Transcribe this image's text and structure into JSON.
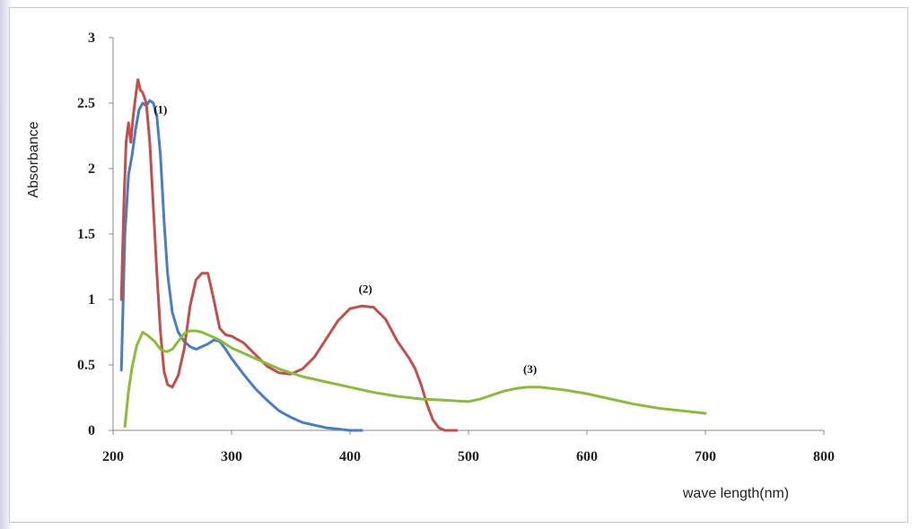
{
  "chart_data": {
    "type": "line",
    "title": "",
    "xlabel": "wave length(nm)",
    "ylabel": "Absorbance",
    "xlim": [
      200,
      800
    ],
    "ylim": [
      0,
      3
    ],
    "xticks": [
      200,
      300,
      400,
      500,
      600,
      700,
      800
    ],
    "yticks": [
      0,
      0.5,
      1,
      1.5,
      2,
      2.5,
      3
    ],
    "ytick_labels": [
      "0",
      "0.5",
      "1",
      "1.5",
      "2",
      "2.5",
      "3"
    ],
    "grid": false,
    "legend": "none",
    "series": [
      {
        "label": "(1)",
        "color": "#4a7ebf",
        "x": [
          207,
          210,
          213,
          216,
          219,
          222,
          225,
          228,
          231,
          234,
          237,
          240,
          243,
          246,
          250,
          255,
          260,
          265,
          270,
          275,
          280,
          285,
          290,
          295,
          300,
          310,
          320,
          330,
          340,
          350,
          360,
          370,
          380,
          390,
          400,
          410
        ],
        "y": [
          0.46,
          1.5,
          1.95,
          2.1,
          2.3,
          2.45,
          2.5,
          2.48,
          2.52,
          2.5,
          2.4,
          2.1,
          1.6,
          1.2,
          0.9,
          0.75,
          0.68,
          0.64,
          0.62,
          0.64,
          0.66,
          0.69,
          0.68,
          0.62,
          0.55,
          0.43,
          0.32,
          0.23,
          0.15,
          0.1,
          0.06,
          0.04,
          0.02,
          0.01,
          0.0,
          0.0
        ]
      },
      {
        "label": "(2)",
        "color": "#c0504d",
        "x": [
          207,
          209,
          211,
          213,
          215,
          217,
          219,
          221,
          223,
          225,
          228,
          231,
          234,
          237,
          240,
          243,
          246,
          250,
          255,
          260,
          265,
          270,
          275,
          280,
          285,
          290,
          295,
          300,
          310,
          320,
          330,
          340,
          350,
          360,
          370,
          380,
          390,
          400,
          410,
          420,
          430,
          440,
          450,
          455,
          460,
          465,
          470,
          475,
          480,
          490
        ],
        "y": [
          1.0,
          1.7,
          2.2,
          2.35,
          2.2,
          2.4,
          2.55,
          2.68,
          2.6,
          2.58,
          2.5,
          2.2,
          1.7,
          1.2,
          0.75,
          0.45,
          0.35,
          0.33,
          0.42,
          0.62,
          0.95,
          1.15,
          1.2,
          1.2,
          1.0,
          0.78,
          0.73,
          0.72,
          0.67,
          0.58,
          0.49,
          0.44,
          0.43,
          0.47,
          0.56,
          0.7,
          0.84,
          0.93,
          0.95,
          0.94,
          0.85,
          0.68,
          0.55,
          0.47,
          0.35,
          0.2,
          0.08,
          0.02,
          0.0,
          0.0
        ]
      },
      {
        "label": "(3)",
        "color": "#8cbb3c",
        "x": [
          210,
          213,
          216,
          220,
          225,
          230,
          235,
          240,
          245,
          250,
          255,
          260,
          265,
          270,
          275,
          280,
          290,
          300,
          320,
          340,
          360,
          380,
          400,
          420,
          440,
          460,
          480,
          500,
          510,
          520,
          530,
          540,
          550,
          560,
          570,
          580,
          600,
          620,
          640,
          660,
          680,
          700
        ],
        "y": [
          0.03,
          0.3,
          0.48,
          0.65,
          0.75,
          0.72,
          0.68,
          0.62,
          0.6,
          0.62,
          0.68,
          0.74,
          0.76,
          0.76,
          0.75,
          0.73,
          0.69,
          0.63,
          0.55,
          0.47,
          0.41,
          0.37,
          0.33,
          0.29,
          0.26,
          0.24,
          0.23,
          0.22,
          0.24,
          0.27,
          0.3,
          0.32,
          0.33,
          0.33,
          0.32,
          0.31,
          0.28,
          0.24,
          0.2,
          0.17,
          0.15,
          0.13
        ]
      }
    ],
    "annotations": [
      {
        "text": "(1)",
        "x": 240,
        "y": 2.42
      },
      {
        "text": "(2)",
        "x": 413,
        "y": 1.05
      },
      {
        "text": "(3)",
        "x": 552,
        "y": 0.44
      }
    ]
  }
}
